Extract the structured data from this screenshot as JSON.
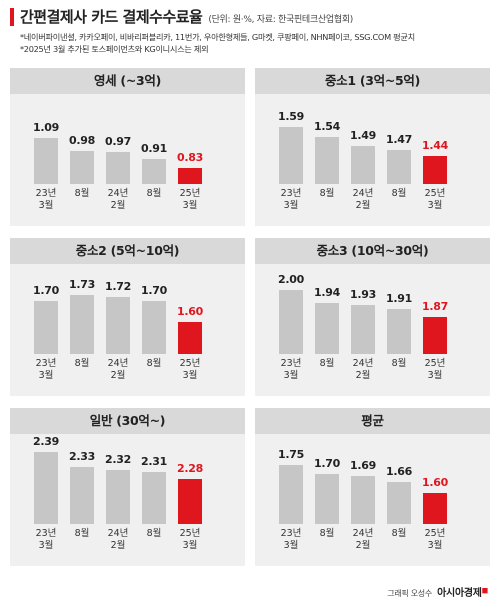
{
  "header": {
    "title": "간편결제사 카드 결제수수료율",
    "unit": "(단위: 원·%, 자료: 한국핀테크산업협회)",
    "note1": "*네이버파이낸셜, 카카오페이, 비바리퍼블리카, 11번가, 우아한형제들, G마켓, 쿠팡페이, NHN페이코, SSG.COM 평균치",
    "note2": "*2025년 3월 추가된 토스페이먼츠와 KG이니시스는 제외"
  },
  "credit": {
    "text": "그래픽 오성수",
    "brand": "아시아경제"
  },
  "chart_data": [
    {
      "type": "bar",
      "title": "영세 (~3억)",
      "categories": [
        [
          "23년",
          "3월"
        ],
        [
          "8월"
        ],
        [
          "24년",
          "2월"
        ],
        [
          "8월"
        ],
        [
          "25년",
          "3월"
        ]
      ],
      "values": [
        1.09,
        0.98,
        0.97,
        0.91,
        0.83
      ],
      "highlight_index": 4,
      "bar_color": "#c6c6c6",
      "highlight_color": "#e0161f"
    },
    {
      "type": "bar",
      "title": "중소1 (3억~5억)",
      "categories": [
        [
          "23년",
          "3월"
        ],
        [
          "8월"
        ],
        [
          "24년",
          "2월"
        ],
        [
          "8월"
        ],
        [
          "25년",
          "3월"
        ]
      ],
      "values": [
        1.59,
        1.54,
        1.49,
        1.47,
        1.44
      ],
      "highlight_index": 4,
      "bar_color": "#c6c6c6",
      "highlight_color": "#e0161f"
    },
    {
      "type": "bar",
      "title": "중소2 (5억~10억)",
      "categories": [
        [
          "23년",
          "3월"
        ],
        [
          "8월"
        ],
        [
          "24년",
          "2월"
        ],
        [
          "8월"
        ],
        [
          "25년",
          "3월"
        ]
      ],
      "values": [
        1.7,
        1.73,
        1.72,
        1.7,
        1.6
      ],
      "highlight_index": 4,
      "bar_color": "#c6c6c6",
      "highlight_color": "#e0161f"
    },
    {
      "type": "bar",
      "title": "중소3 (10억~30억)",
      "categories": [
        [
          "23년",
          "3월"
        ],
        [
          "8월"
        ],
        [
          "24년",
          "2월"
        ],
        [
          "8월"
        ],
        [
          "25년",
          "3월"
        ]
      ],
      "values": [
        2.0,
        1.94,
        1.93,
        1.91,
        1.87
      ],
      "highlight_index": 4,
      "bar_color": "#c6c6c6",
      "highlight_color": "#e0161f"
    },
    {
      "type": "bar",
      "title": "일반 (30억~)",
      "categories": [
        [
          "23년",
          "3월"
        ],
        [
          "8월"
        ],
        [
          "24년",
          "2월"
        ],
        [
          "8월"
        ],
        [
          "25년",
          "3월"
        ]
      ],
      "values": [
        2.39,
        2.33,
        2.32,
        2.31,
        2.28
      ],
      "highlight_index": 4,
      "bar_color": "#c6c6c6",
      "highlight_color": "#e0161f"
    },
    {
      "type": "bar",
      "title": "평균",
      "categories": [
        [
          "23년",
          "3월"
        ],
        [
          "8월"
        ],
        [
          "24년",
          "2월"
        ],
        [
          "8월"
        ],
        [
          "25년",
          "3월"
        ]
      ],
      "values": [
        1.75,
        1.7,
        1.69,
        1.66,
        1.6
      ],
      "highlight_index": 4,
      "bar_color": "#c6c6c6",
      "highlight_color": "#e0161f"
    }
  ]
}
